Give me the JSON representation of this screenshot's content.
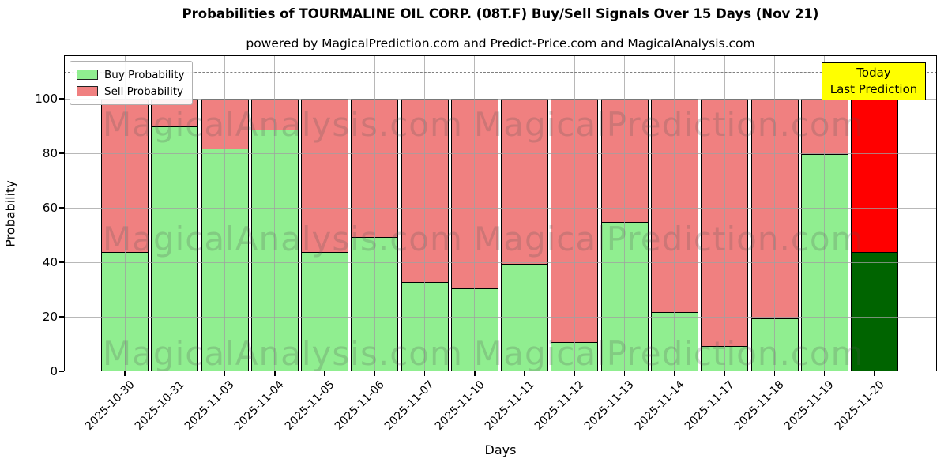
{
  "chart": {
    "title": "Probabilities of TOURMALINE OIL CORP. (08T.F) Buy/Sell Signals Over 15 Days (Nov 21)",
    "subtitle": "powered by MagicalPrediction.com and Predict-Price.com and MagicalAnalysis.com",
    "xlabel": "Days",
    "ylabel": "Probability",
    "legend": [
      {
        "label": "Buy Probability",
        "color": "#90EE90"
      },
      {
        "label": "Sell Probability",
        "color": "#F08080"
      }
    ],
    "annotation_box": {
      "line1": "Today",
      "line2": "Last Prediction",
      "bg_color": "#FFFF00"
    },
    "watermarks": {
      "left": "MagicalAnalysis.com",
      "right": "MagicalPrediction.com"
    }
  },
  "chart_data": {
    "type": "bar",
    "stacked": true,
    "title": "Probabilities of TOURMALINE OIL CORP. (08T.F) Buy/Sell Signals Over 15 Days (Nov 21)",
    "xlabel": "Days",
    "ylabel": "Probability",
    "categories": [
      "2025-10-30",
      "2025-10-31",
      "2025-11-03",
      "2025-11-04",
      "2025-11-05",
      "2025-11-06",
      "2025-11-07",
      "2025-11-10",
      "2025-11-11",
      "2025-11-12",
      "2025-11-13",
      "2025-11-14",
      "2025-11-17",
      "2025-11-18",
      "2025-11-19",
      "2025-11-20"
    ],
    "series": [
      {
        "name": "Buy Probability",
        "color": "#90EE90",
        "values": [
          44,
          90,
          82,
          89,
          44,
          49.5,
          33,
          30.5,
          39.5,
          11,
          55,
          22,
          9.5,
          19.5,
          80,
          44
        ]
      },
      {
        "name": "Sell Probability",
        "color": "#F08080",
        "values": [
          56,
          10,
          18,
          11,
          56,
          50.5,
          67,
          69.5,
          60.5,
          89,
          45,
          78,
          90.5,
          80.5,
          20,
          56
        ]
      }
    ],
    "today_bar": {
      "category": "2025-11-20",
      "buy_color": "#006400",
      "sell_color": "#FF0000"
    },
    "bar_edge_color": "#000000",
    "yticks": [
      0,
      20,
      40,
      60,
      80,
      100
    ],
    "ylim": [
      0,
      116
    ],
    "dashed_line_y": 110,
    "grid": true,
    "legend_position": "upper-left"
  }
}
